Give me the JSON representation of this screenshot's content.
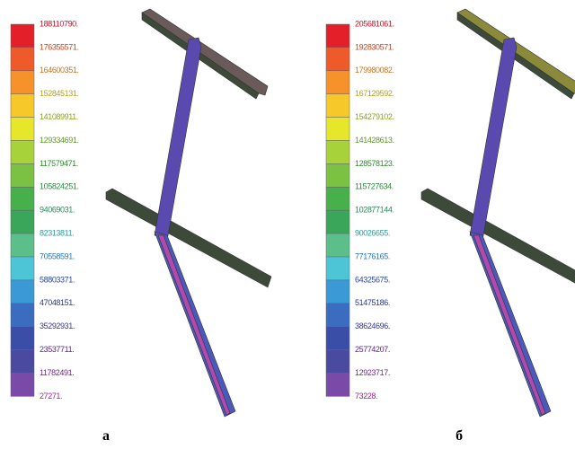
{
  "panels": [
    {
      "legend": [
        "188110790.",
        "176355571.",
        "164600351.",
        "152845131.",
        "141089911.",
        "129334691.",
        "117579471.",
        "105824251.",
        "94069031.",
        "82313811.",
        "70558591.",
        "58803371.",
        "47048151.",
        "35292931.",
        "23537711.",
        "11782491.",
        "27271."
      ],
      "caption": "а"
    },
    {
      "legend": [
        "205681061.",
        "192830571.",
        "179980082.",
        "167129592.",
        "154279102.",
        "141428613.",
        "128578123.",
        "115727634.",
        "102877144.",
        "90026655.",
        "77176165.",
        "64325675.",
        "51475186.",
        "38624696.",
        "25774207.",
        "12923717.",
        "73228."
      ],
      "caption": "б"
    }
  ]
}
